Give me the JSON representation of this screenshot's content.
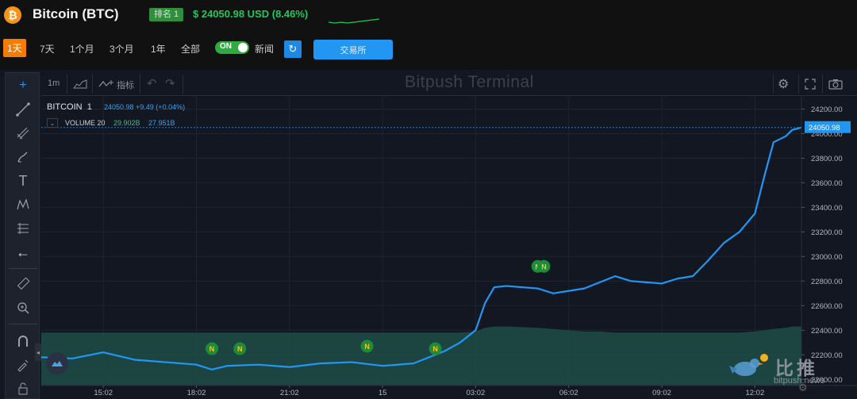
{
  "header": {
    "coin_symbol": "₿",
    "title": "Bitcoin (BTC)",
    "rank": "排名 1",
    "price": "$ 24050.98 USD (8.46%)"
  },
  "toolbar": {
    "periods": [
      "1天",
      "7天",
      "1个月",
      "3个月",
      "1年",
      "全部"
    ],
    "active_period": "1天",
    "toggle_label": "ON",
    "news_label": "新闻",
    "exchange_label": "交易所"
  },
  "chart_toolbar": {
    "interval": "1m",
    "indicators_label": "指标",
    "terminal_title": "Bitpush Terminal"
  },
  "legend": {
    "symbol": "BITCOIN",
    "interval": "1",
    "values": "24050.98  +9.49 (+0.04%)",
    "volume_label": "VOLUME 20",
    "volume_value_1": "29.902B",
    "volume_value_2": "27.951B"
  },
  "watermark": {
    "brand_text": "比推",
    "url": "bitpush.news"
  },
  "colors": {
    "line": "#2196f3",
    "volume_fill": "#1f4d46",
    "price_tag": "#2196f3",
    "news_marker": "#1f8a3c",
    "news_marker_text": "#f5c518"
  },
  "chart_data": {
    "type": "line",
    "y_ticks": [
      "24200.00",
      "24000.00",
      "23800.00",
      "23600.00",
      "23400.00",
      "23200.00",
      "23000.00",
      "22800.00",
      "22600.00",
      "22400.00",
      "22200.00",
      "22000.00"
    ],
    "x_ticks": [
      "15:02",
      "18:02",
      "21:02",
      "15",
      "03:02",
      "06:02",
      "09:02",
      "12:02"
    ],
    "last_price_label": "24050.98",
    "ylim": [
      21950,
      24300
    ],
    "x_hours": [
      13.0,
      14.0,
      15.0,
      16.0,
      17.0,
      18.0,
      18.5,
      19.0,
      20.0,
      21.0,
      22.0,
      23.0,
      24.0,
      25.0,
      26.0,
      26.5,
      27.0,
      27.3,
      27.6,
      28.0,
      29.0,
      29.5,
      30.0,
      30.5,
      31.0,
      31.5,
      32.0,
      32.5,
      33.0,
      33.5,
      34.0,
      34.5,
      35.0,
      35.5,
      36.0,
      36.3,
      36.6,
      37.0,
      37.2,
      37.5
    ],
    "price": [
      22180,
      22170,
      22220,
      22160,
      22140,
      22120,
      22080,
      22110,
      22120,
      22100,
      22130,
      22140,
      22110,
      22130,
      22230,
      22300,
      22400,
      22620,
      22750,
      22760,
      22740,
      22700,
      22720,
      22740,
      22790,
      22840,
      22800,
      22790,
      22780,
      22820,
      22840,
      22970,
      23110,
      23200,
      23350,
      23650,
      23930,
      23980,
      24030,
      24050
    ],
    "volume_top": [
      22380,
      22380,
      22380,
      22380,
      22380,
      22380,
      22380,
      22380,
      22380,
      22380,
      22380,
      22380,
      22380,
      22380,
      22380,
      22380,
      22390,
      22420,
      22430,
      22430,
      22420,
      22410,
      22400,
      22390,
      22390,
      22380,
      22380,
      22380,
      22380,
      22380,
      22380,
      22380,
      22380,
      22380,
      22390,
      22400,
      22410,
      22420,
      22430,
      22430
    ],
    "news_markers": [
      {
        "x": 18.5,
        "y": 22250
      },
      {
        "x": 19.4,
        "y": 22250
      },
      {
        "x": 23.5,
        "y": 22270
      },
      {
        "x": 25.7,
        "y": 22250
      },
      {
        "x": 29.0,
        "y": 22920
      },
      {
        "x": 29.2,
        "y": 22920
      }
    ],
    "xlim": [
      13.0,
      37.5
    ],
    "x_tick_hours": [
      15.0,
      18.0,
      21.0,
      24.0,
      27.0,
      30.0,
      33.0,
      36.0
    ]
  }
}
